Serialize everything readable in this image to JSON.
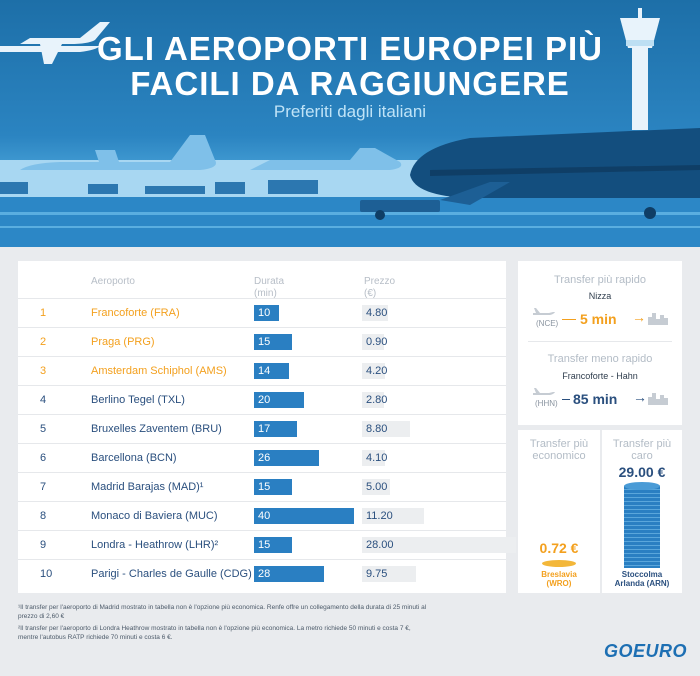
{
  "header": {
    "title_line1": "GLI AEROPORTI EUROPEI PIÙ",
    "title_line2": "FACILI DA RAGGIUNGERE",
    "subtitle": "Preferiti dagli italiani"
  },
  "table": {
    "col_airport": "Aeroporto",
    "col_duration_1": "Durata",
    "col_duration_2": "(min)",
    "col_price_1": "Prezzo",
    "col_price_2": "(€)",
    "rows": [
      {
        "rank": "1",
        "airport": "Francoforte (FRA)",
        "duration": "10",
        "price": "4.80"
      },
      {
        "rank": "2",
        "airport": "Praga (PRG)",
        "duration": "15",
        "price": "0.90"
      },
      {
        "rank": "3",
        "airport": "Amsterdam Schiphol (AMS)",
        "duration": "14",
        "price": "4.20"
      },
      {
        "rank": "4",
        "airport": "Berlino Tegel (TXL)",
        "duration": "20",
        "price": "2.80"
      },
      {
        "rank": "5",
        "airport": "Bruxelles Zaventem (BRU)",
        "duration": "17",
        "price": "8.80"
      },
      {
        "rank": "6",
        "airport": "Barcellona (BCN)",
        "duration": "26",
        "price": "4.10"
      },
      {
        "rank": "7",
        "airport": "Madrid Barajas (MAD)¹",
        "duration": "15",
        "price": "5.00"
      },
      {
        "rank": "8",
        "airport": "Monaco di Baviera (MUC)",
        "duration": "40",
        "price": "11.20"
      },
      {
        "rank": "9",
        "airport": "Londra - Heathrow (LHR)²",
        "duration": "15",
        "price": "28.00"
      },
      {
        "rank": "10",
        "airport": "Parigi - Charles de Gaulle (CDG)",
        "duration": "28",
        "price": "9.75"
      }
    ]
  },
  "fastest": {
    "title": "Transfer più rapido",
    "city": "Nizza",
    "code": "(NCE)",
    "time": "5 min"
  },
  "slowest": {
    "title": "Transfer meno rapido",
    "city": "Francoforte - Hahn",
    "code": "(HHN)",
    "time": "85 min"
  },
  "cheapest": {
    "title_1": "Transfer più",
    "title_2": "economico",
    "price": "0.72 €",
    "city_1": "Breslavia",
    "city_2": "(WRO)"
  },
  "priciest": {
    "title_1": "Transfer più",
    "title_2": "caro",
    "price": "29.00 €",
    "city_1": "Stoccolma",
    "city_2": "Arlanda (ARN)"
  },
  "footnotes": {
    "n1_a": "¹Il transfer per l'aeroporto di Madrid mostrato in tabella non è l'opzione più economica. Renfe offre un collegamento della durata di 25 minuti al",
    "n1_b": "prezzo di 2,60 €",
    "n2_a": "²Il transfer per l'aeroporto di Londra Heathrow mostrato in tabella non è l'opzione più economica. La metro richiede 50 minuti e costa 7 €,",
    "n2_b": "mentre l'autobus RATP richiede 70 minuti e costa 6 €."
  },
  "logo": "GOEURO",
  "colors": {
    "accent": "#f3a01e",
    "bar": "#2a7fc2",
    "text": "#2a4f7e"
  }
}
